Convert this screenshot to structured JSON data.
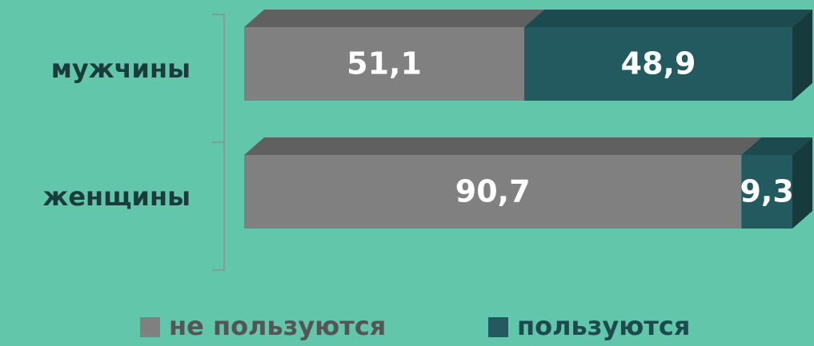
{
  "chart_data": {
    "type": "bar",
    "orientation": "horizontal",
    "stacked": true,
    "categories": [
      "мужчины",
      "женщины"
    ],
    "series": [
      {
        "name": "не пользуются",
        "color": "#808080",
        "values": [
          51.1,
          90.7
        ],
        "value_labels": [
          "51,1",
          "90,7"
        ]
      },
      {
        "name": "пользуются",
        "color": "#235a60",
        "values": [
          48.9,
          9.3
        ],
        "value_labels": [
          "48,9",
          "9,3"
        ]
      }
    ],
    "xlim": [
      0,
      100
    ],
    "legend": "bottom"
  }
}
